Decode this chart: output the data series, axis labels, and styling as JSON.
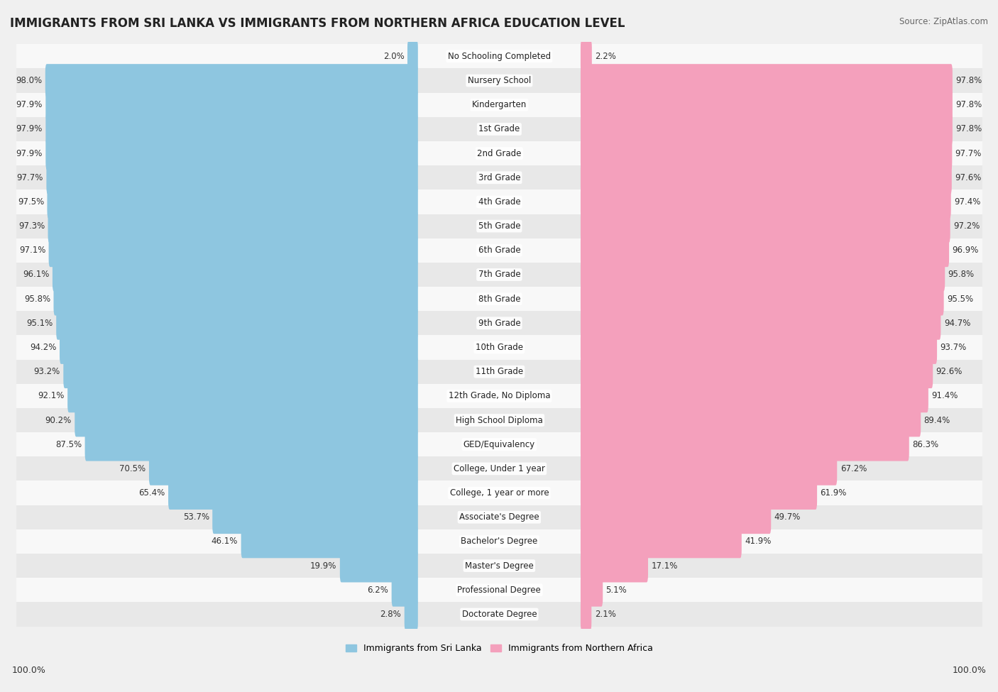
{
  "title": "IMMIGRANTS FROM SRI LANKA VS IMMIGRANTS FROM NORTHERN AFRICA EDUCATION LEVEL",
  "source": "Source: ZipAtlas.com",
  "categories": [
    "No Schooling Completed",
    "Nursery School",
    "Kindergarten",
    "1st Grade",
    "2nd Grade",
    "3rd Grade",
    "4th Grade",
    "5th Grade",
    "6th Grade",
    "7th Grade",
    "8th Grade",
    "9th Grade",
    "10th Grade",
    "11th Grade",
    "12th Grade, No Diploma",
    "High School Diploma",
    "GED/Equivalency",
    "College, Under 1 year",
    "College, 1 year or more",
    "Associate's Degree",
    "Bachelor's Degree",
    "Master's Degree",
    "Professional Degree",
    "Doctorate Degree"
  ],
  "sri_lanka": [
    2.0,
    98.0,
    97.9,
    97.9,
    97.9,
    97.7,
    97.5,
    97.3,
    97.1,
    96.1,
    95.8,
    95.1,
    94.2,
    93.2,
    92.1,
    90.2,
    87.5,
    70.5,
    65.4,
    53.7,
    46.1,
    19.9,
    6.2,
    2.8
  ],
  "northern_africa": [
    2.2,
    97.8,
    97.8,
    97.8,
    97.7,
    97.6,
    97.4,
    97.2,
    96.9,
    95.8,
    95.5,
    94.7,
    93.7,
    92.6,
    91.4,
    89.4,
    86.3,
    67.2,
    61.9,
    49.7,
    41.9,
    17.1,
    5.1,
    2.1
  ],
  "sri_lanka_color": "#8EC6E0",
  "northern_africa_color": "#F4A0BC",
  "bg_color": "#f0f0f0",
  "row_color_odd": "#e8e8e8",
  "row_color_even": "#f8f8f8",
  "title_fontsize": 12,
  "source_fontsize": 8.5,
  "label_fontsize": 8.5,
  "value_fontsize": 8.5,
  "legend_label_sri": "Immigrants from Sri Lanka",
  "legend_label_africa": "Immigrants from Northern Africa"
}
